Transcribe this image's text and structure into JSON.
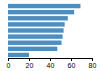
{
  "chart_data": {
    "type": "bar",
    "orientation": "horizontal",
    "categories": [
      null,
      null,
      null,
      null,
      null,
      null,
      null,
      null,
      null
    ],
    "values": [
      69,
      63,
      57,
      54,
      53,
      52,
      51,
      47,
      20
    ],
    "color": "#4a8fc4",
    "xlim": [
      0,
      80
    ],
    "xticks": [
      0,
      20,
      40,
      60,
      80
    ],
    "grid": false,
    "tick_labels": "x"
  }
}
